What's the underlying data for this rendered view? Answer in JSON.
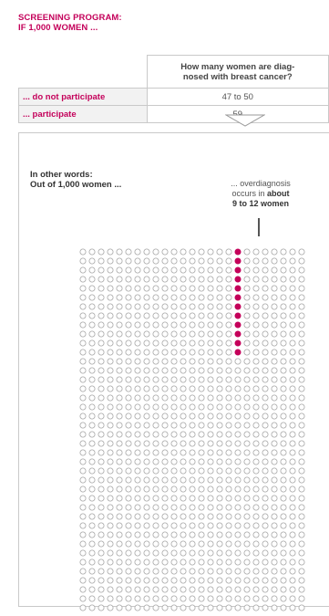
{
  "header": {
    "line1": "SCREENING PROGRAM:",
    "line2": "IF 1,000 WOMEN ..."
  },
  "table": {
    "question_line1": "How many women are diag-",
    "question_line2": "nosed with breast cancer?",
    "rows": [
      {
        "label": "... do not participate",
        "value": "47 to 50"
      },
      {
        "label": "... participate",
        "value": "59"
      }
    ]
  },
  "explanation": {
    "line1": "In other words:",
    "line2": "Out of 1,000 women ...",
    "note_line1": "... overdiagnosis",
    "note_line2_prefix": "occurs in ",
    "note_line2_bold": "about",
    "note_line3": "9 to 12 women"
  },
  "dot_grid": {
    "total": 1000,
    "columns": 25,
    "rows": 40,
    "highlighted": 12,
    "highlight_column": 17,
    "colors": {
      "highlight": "#c4005a",
      "normal_stroke": "#a8a8a8"
    }
  },
  "colors": {
    "accent": "#c4005a",
    "border": "#c9c9c9",
    "label_bg": "#f2f2f2"
  }
}
